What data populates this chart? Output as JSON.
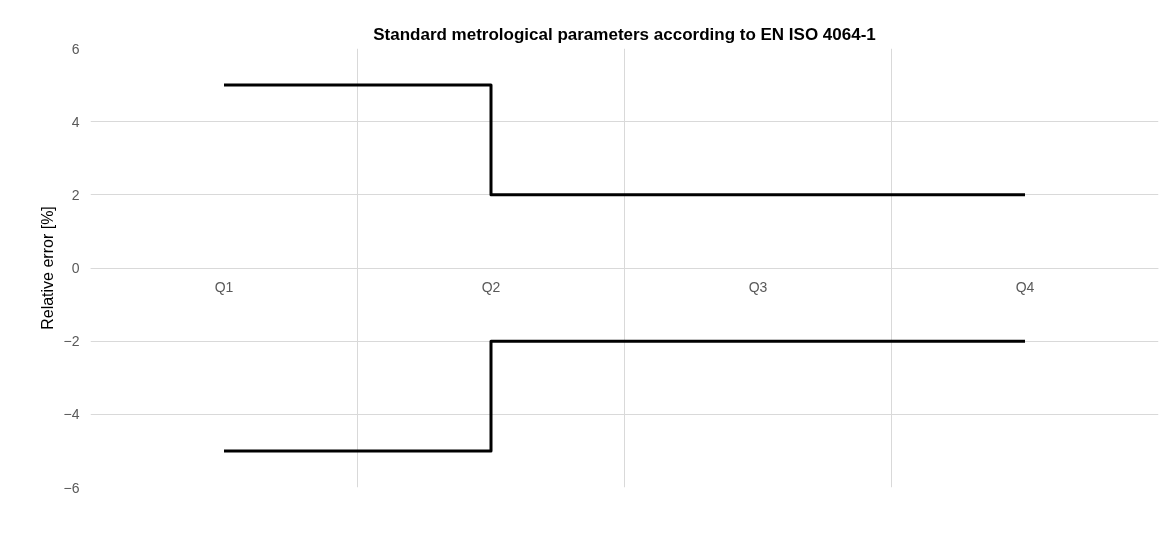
{
  "chart_data": {
    "type": "step",
    "title": "Standard metrological parameters according to EN ISO 4064-1",
    "ylabel": "Relative error [%]",
    "categories": [
      "Q1",
      "Q2",
      "Q3",
      "Q4"
    ],
    "series": [
      {
        "color": "#000000",
        "values": [
          5,
          2,
          2,
          2
        ]
      },
      {
        "color": "#000000",
        "values": [
          -5,
          -2,
          -2,
          -2
        ]
      }
    ],
    "ylim": [
      -6,
      6
    ],
    "yticks": [
      -6,
      -4,
      -2,
      0,
      2,
      4,
      6
    ],
    "grid": true
  }
}
